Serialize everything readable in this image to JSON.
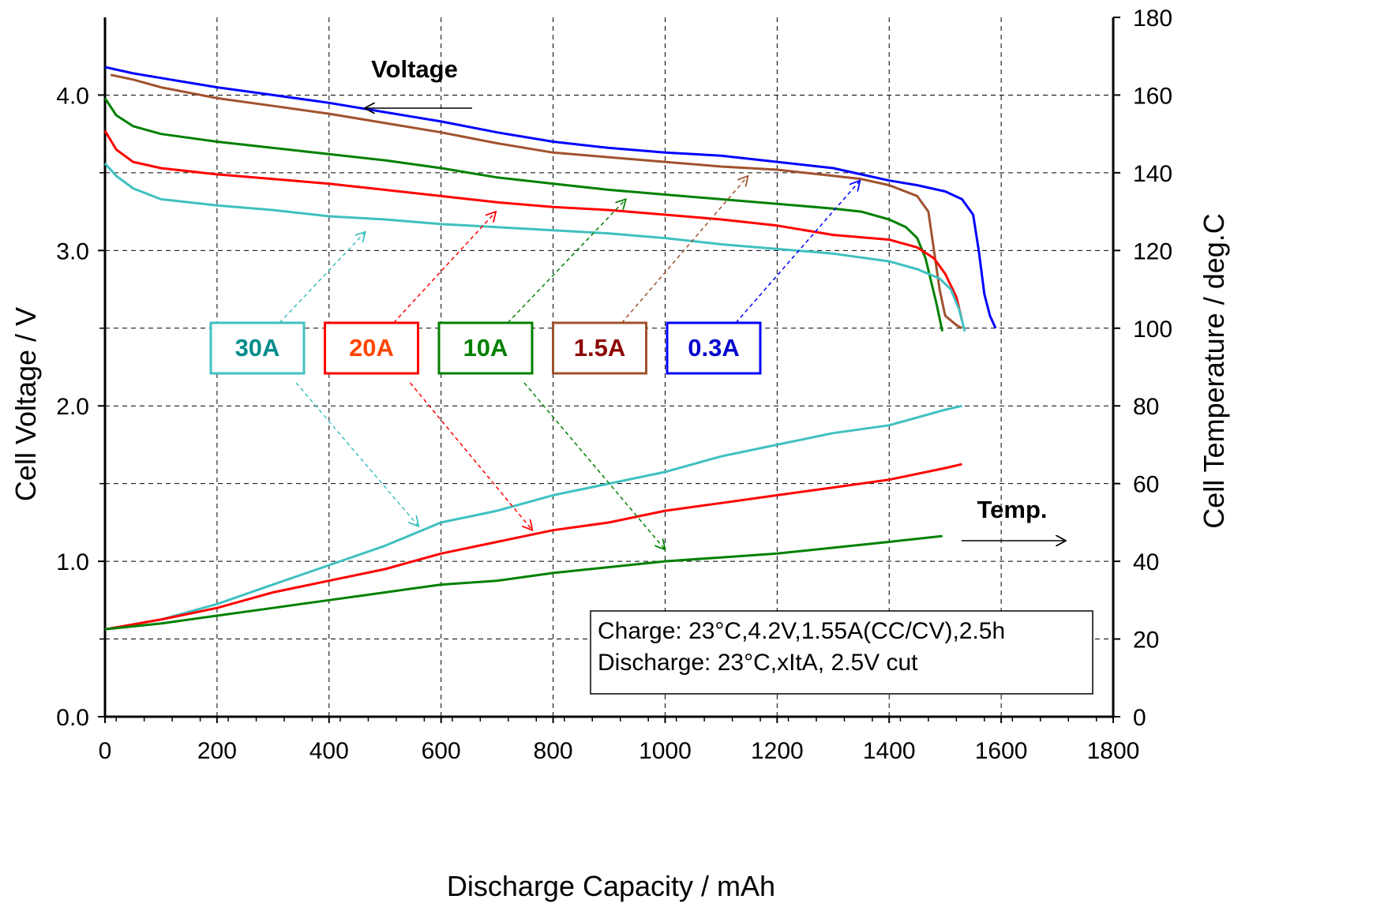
{
  "chart_data": {
    "type": "line",
    "xlabel": "Discharge Capacity / mAh",
    "ylabel": "Cell Voltage / V",
    "y2label": "Cell Temperature / deg.C",
    "xlim": [
      0,
      1800
    ],
    "ylim": [
      0,
      4.5
    ],
    "y2lim": [
      0,
      180
    ],
    "x_ticks": [
      "0",
      "200",
      "400",
      "600",
      "800",
      "1000",
      "1200",
      "1400",
      "1600",
      "1800"
    ],
    "y_ticks": [
      "0.0",
      "1.0",
      "2.0",
      "3.0",
      "4.0"
    ],
    "y2_ticks": [
      "0",
      "20",
      "40",
      "60",
      "80",
      "100",
      "120",
      "140",
      "160",
      "180"
    ],
    "grid": true,
    "annotations": {
      "voltage": "Voltage",
      "temp": "Temp."
    },
    "conditions": [
      "Charge: 23°C,4.2V,1.55A(CC/CV),2.5h",
      "Discharge: 23°C,xItA, 2.5V cut"
    ],
    "series": [
      {
        "name": "0.3A",
        "color": "#0000ff",
        "text_color": "#0000cc",
        "axis": "voltage",
        "points": [
          [
            0,
            4.18
          ],
          [
            50,
            4.14
          ],
          [
            100,
            4.11
          ],
          [
            200,
            4.05
          ],
          [
            300,
            4.0
          ],
          [
            400,
            3.95
          ],
          [
            500,
            3.89
          ],
          [
            600,
            3.83
          ],
          [
            700,
            3.76
          ],
          [
            800,
            3.7
          ],
          [
            900,
            3.66
          ],
          [
            1000,
            3.63
          ],
          [
            1100,
            3.61
          ],
          [
            1200,
            3.57
          ],
          [
            1300,
            3.53
          ],
          [
            1350,
            3.49
          ],
          [
            1400,
            3.45
          ],
          [
            1450,
            3.42
          ],
          [
            1500,
            3.38
          ],
          [
            1530,
            3.33
          ],
          [
            1550,
            3.23
          ],
          [
            1560,
            3.0
          ],
          [
            1570,
            2.72
          ],
          [
            1580,
            2.58
          ],
          [
            1590,
            2.5
          ]
        ]
      },
      {
        "name": "1.5A",
        "color": "#a0522d",
        "text_color": "#8b0000",
        "axis": "voltage",
        "points": [
          [
            10,
            4.13
          ],
          [
            50,
            4.1
          ],
          [
            100,
            4.05
          ],
          [
            200,
            3.98
          ],
          [
            300,
            3.93
          ],
          [
            400,
            3.88
          ],
          [
            500,
            3.82
          ],
          [
            600,
            3.76
          ],
          [
            700,
            3.69
          ],
          [
            800,
            3.63
          ],
          [
            900,
            3.6
          ],
          [
            1000,
            3.57
          ],
          [
            1100,
            3.54
          ],
          [
            1200,
            3.52
          ],
          [
            1300,
            3.48
          ],
          [
            1350,
            3.46
          ],
          [
            1400,
            3.42
          ],
          [
            1450,
            3.35
          ],
          [
            1470,
            3.25
          ],
          [
            1480,
            3.0
          ],
          [
            1490,
            2.75
          ],
          [
            1500,
            2.58
          ],
          [
            1520,
            2.52
          ],
          [
            1530,
            2.5
          ]
        ]
      },
      {
        "name": "10A",
        "color": "#008000",
        "text_color": "#008000",
        "axis": "voltage",
        "points": [
          [
            0,
            3.98
          ],
          [
            20,
            3.87
          ],
          [
            50,
            3.8
          ],
          [
            100,
            3.75
          ],
          [
            200,
            3.7
          ],
          [
            300,
            3.66
          ],
          [
            400,
            3.62
          ],
          [
            500,
            3.58
          ],
          [
            600,
            3.53
          ],
          [
            700,
            3.47
          ],
          [
            800,
            3.43
          ],
          [
            900,
            3.39
          ],
          [
            1000,
            3.36
          ],
          [
            1100,
            3.33
          ],
          [
            1200,
            3.3
          ],
          [
            1300,
            3.27
          ],
          [
            1350,
            3.25
          ],
          [
            1400,
            3.2
          ],
          [
            1430,
            3.15
          ],
          [
            1450,
            3.08
          ],
          [
            1465,
            2.95
          ],
          [
            1475,
            2.8
          ],
          [
            1485,
            2.65
          ],
          [
            1495,
            2.48
          ]
        ]
      },
      {
        "name": "20A",
        "color": "#ff0000",
        "text_color": "#ff4500",
        "axis": "voltage",
        "points": [
          [
            0,
            3.77
          ],
          [
            20,
            3.65
          ],
          [
            50,
            3.57
          ],
          [
            100,
            3.53
          ],
          [
            200,
            3.49
          ],
          [
            300,
            3.46
          ],
          [
            400,
            3.43
          ],
          [
            500,
            3.39
          ],
          [
            600,
            3.35
          ],
          [
            700,
            3.31
          ],
          [
            800,
            3.28
          ],
          [
            900,
            3.26
          ],
          [
            1000,
            3.23
          ],
          [
            1100,
            3.2
          ],
          [
            1200,
            3.16
          ],
          [
            1300,
            3.1
          ],
          [
            1400,
            3.07
          ],
          [
            1450,
            3.02
          ],
          [
            1480,
            2.95
          ],
          [
            1500,
            2.85
          ],
          [
            1520,
            2.7
          ],
          [
            1530,
            2.55
          ]
        ]
      },
      {
        "name": "30A",
        "color": "#40c0c0",
        "text_color": "#008b8b",
        "axis": "voltage",
        "points": [
          [
            0,
            3.56
          ],
          [
            20,
            3.48
          ],
          [
            50,
            3.4
          ],
          [
            100,
            3.33
          ],
          [
            200,
            3.29
          ],
          [
            300,
            3.26
          ],
          [
            400,
            3.22
          ],
          [
            500,
            3.2
          ],
          [
            600,
            3.17
          ],
          [
            700,
            3.15
          ],
          [
            800,
            3.13
          ],
          [
            900,
            3.11
          ],
          [
            1000,
            3.08
          ],
          [
            1100,
            3.04
          ],
          [
            1200,
            3.01
          ],
          [
            1300,
            2.98
          ],
          [
            1400,
            2.93
          ],
          [
            1450,
            2.88
          ],
          [
            1490,
            2.82
          ],
          [
            1510,
            2.75
          ],
          [
            1525,
            2.62
          ],
          [
            1535,
            2.48
          ]
        ]
      },
      {
        "name": "30A",
        "color": "#40c0c0",
        "axis": "temperature",
        "points": [
          [
            0,
            22.5
          ],
          [
            100,
            25
          ],
          [
            200,
            29
          ],
          [
            300,
            34
          ],
          [
            400,
            39
          ],
          [
            500,
            44
          ],
          [
            600,
            50
          ],
          [
            700,
            53
          ],
          [
            800,
            57
          ],
          [
            900,
            60
          ],
          [
            1000,
            63
          ],
          [
            1100,
            67
          ],
          [
            1200,
            70
          ],
          [
            1300,
            73
          ],
          [
            1400,
            75
          ],
          [
            1500,
            79
          ],
          [
            1530,
            80
          ]
        ]
      },
      {
        "name": "20A",
        "color": "#ff0000",
        "axis": "temperature",
        "points": [
          [
            0,
            22.5
          ],
          [
            100,
            25
          ],
          [
            200,
            28
          ],
          [
            300,
            32
          ],
          [
            400,
            35
          ],
          [
            500,
            38
          ],
          [
            600,
            42
          ],
          [
            700,
            45
          ],
          [
            800,
            48
          ],
          [
            900,
            50
          ],
          [
            1000,
            53
          ],
          [
            1100,
            55
          ],
          [
            1200,
            57
          ],
          [
            1300,
            59
          ],
          [
            1400,
            61
          ],
          [
            1500,
            64
          ],
          [
            1530,
            65
          ]
        ]
      },
      {
        "name": "10A",
        "color": "#008000",
        "axis": "temperature",
        "points": [
          [
            0,
            22.5
          ],
          [
            100,
            24
          ],
          [
            200,
            26
          ],
          [
            300,
            28
          ],
          [
            400,
            30
          ],
          [
            500,
            32
          ],
          [
            600,
            34
          ],
          [
            700,
            35
          ],
          [
            800,
            37
          ],
          [
            900,
            38.5
          ],
          [
            1000,
            40
          ],
          [
            1100,
            41
          ],
          [
            1200,
            42
          ],
          [
            1300,
            43.5
          ],
          [
            1400,
            45
          ],
          [
            1495,
            46.5
          ]
        ]
      }
    ]
  }
}
